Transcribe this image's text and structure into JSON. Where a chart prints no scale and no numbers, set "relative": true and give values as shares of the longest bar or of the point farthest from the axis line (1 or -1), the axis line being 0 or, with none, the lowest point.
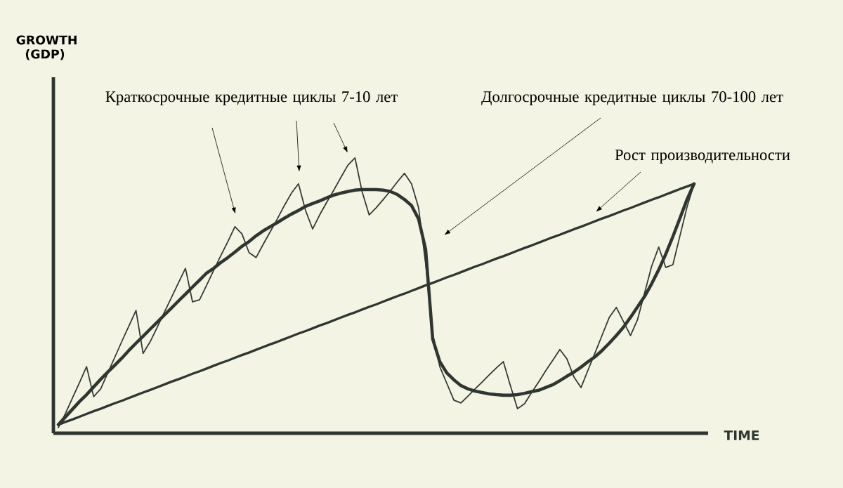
{
  "chart_data": {
    "type": "line",
    "relative": true,
    "xlabel": "TIME",
    "line_style": "solid",
    "categories": [
      null,
      null,
      null,
      null,
      null,
      null,
      null,
      null,
      null,
      null,
      null,
      null,
      null,
      null,
      null,
      null,
      null,
      null,
      null,
      null,
      null,
      null,
      null,
      null,
      null,
      null,
      null,
      null,
      null,
      null,
      null,
      null,
      null,
      null,
      null,
      null,
      null,
      null,
      null,
      null,
      null,
      null,
      null,
      null,
      null,
      null,
      null,
      null,
      null,
      null,
      null,
      null,
      null,
      null,
      null,
      null,
      null,
      null,
      null,
      null,
      null,
      null,
      null,
      null,
      null,
      null,
      null,
      null,
      null,
      null,
      null,
      null,
      null,
      null,
      null,
      null,
      null,
      null,
      null,
      null,
      null,
      null,
      null,
      null,
      null,
      null,
      null,
      null,
      null,
      null,
      null
    ],
    "annotations": [
      "Краткосрочные кредитные циклы 7-10 лет",
      "Долгосрочные кредитные циклы 70-100 лет",
      "Рост производительности",
      "GROWTH (GDP)"
    ],
    "series": [
      {
        "color": "#2f3632",
        "values": [
          0.02,
          0.071,
          0.128,
          0.184,
          0.242,
          0.133,
          0.161,
          0.219,
          0.276,
          0.334,
          0.39,
          0.446,
          0.29,
          0.332,
          0.385,
          0.439,
          0.492,
          0.546,
          0.599,
          0.477,
          0.485,
          0.538,
          0.592,
          0.645,
          0.696,
          0.75,
          0.724,
          0.656,
          0.638,
          0.686,
          0.732,
          0.778,
          0.827,
          0.872,
          0.906,
          0.809,
          0.742,
          0.793,
          0.839,
          0.883,
          0.929,
          0.974,
          1.0,
          0.878,
          0.793,
          0.819,
          0.849,
          0.88,
          0.913,
          0.944,
          0.906,
          0.819,
          0.615,
          0.362,
          0.242,
          0.181,
          0.12,
          0.11,
          0.135,
          0.161,
          0.186,
          0.212,
          0.237,
          0.26,
          0.173,
          0.089,
          0.107,
          0.148,
          0.186,
          0.227,
          0.265,
          0.304,
          0.27,
          0.204,
          0.166,
          0.23,
          0.293,
          0.357,
          0.421,
          0.457,
          0.406,
          0.355,
          0.413,
          0.51,
          0.607,
          0.676,
          0.602,
          0.612,
          0.717,
          0.821,
          0.906
        ]
      },
      {
        "color": "#2f3632",
        "values": [
          0.031,
          0.059,
          0.087,
          0.115,
          0.14,
          0.168,
          0.196,
          0.222,
          0.247,
          0.273,
          0.301,
          0.327,
          0.352,
          0.378,
          0.403,
          0.429,
          0.454,
          0.48,
          0.505,
          0.531,
          0.556,
          0.582,
          0.599,
          0.62,
          0.638,
          0.658,
          0.679,
          0.696,
          0.717,
          0.735,
          0.75,
          0.765,
          0.781,
          0.796,
          0.809,
          0.824,
          0.834,
          0.844,
          0.855,
          0.865,
          0.872,
          0.878,
          0.883,
          0.885,
          0.885,
          0.885,
          0.883,
          0.878,
          0.867,
          0.849,
          0.827,
          0.778,
          0.668,
          0.342,
          0.26,
          0.219,
          0.194,
          0.173,
          0.161,
          0.153,
          0.148,
          0.143,
          0.14,
          0.138,
          0.138,
          0.14,
          0.145,
          0.151,
          0.156,
          0.166,
          0.176,
          0.191,
          0.207,
          0.222,
          0.24,
          0.26,
          0.278,
          0.301,
          0.327,
          0.355,
          0.385,
          0.421,
          0.459,
          0.497,
          0.543,
          0.594,
          0.651,
          0.714,
          0.781,
          0.849,
          0.906
        ]
      },
      {
        "color": "#2f3632",
        "values": [
          0.031,
          0.041,
          0.05,
          0.06,
          0.07,
          0.08,
          0.089,
          0.099,
          0.109,
          0.118,
          0.128,
          0.138,
          0.148,
          0.157,
          0.167,
          0.177,
          0.187,
          0.196,
          0.206,
          0.216,
          0.225,
          0.235,
          0.245,
          0.255,
          0.264,
          0.274,
          0.284,
          0.293,
          0.303,
          0.313,
          0.323,
          0.332,
          0.342,
          0.352,
          0.362,
          0.371,
          0.381,
          0.391,
          0.4,
          0.41,
          0.42,
          0.43,
          0.439,
          0.449,
          0.459,
          0.468,
          0.478,
          0.488,
          0.498,
          0.507,
          0.517,
          0.527,
          0.537,
          0.546,
          0.556,
          0.566,
          0.575,
          0.585,
          0.595,
          0.605,
          0.614,
          0.624,
          0.634,
          0.643,
          0.653,
          0.663,
          0.673,
          0.682,
          0.692,
          0.702,
          0.712,
          0.721,
          0.731,
          0.741,
          0.75,
          0.76,
          0.77,
          0.78,
          0.789,
          0.799,
          0.809,
          0.818,
          0.828,
          0.838,
          0.848,
          0.857,
          0.867,
          0.877,
          0.887,
          0.896,
          0.906
        ]
      }
    ]
  }
}
